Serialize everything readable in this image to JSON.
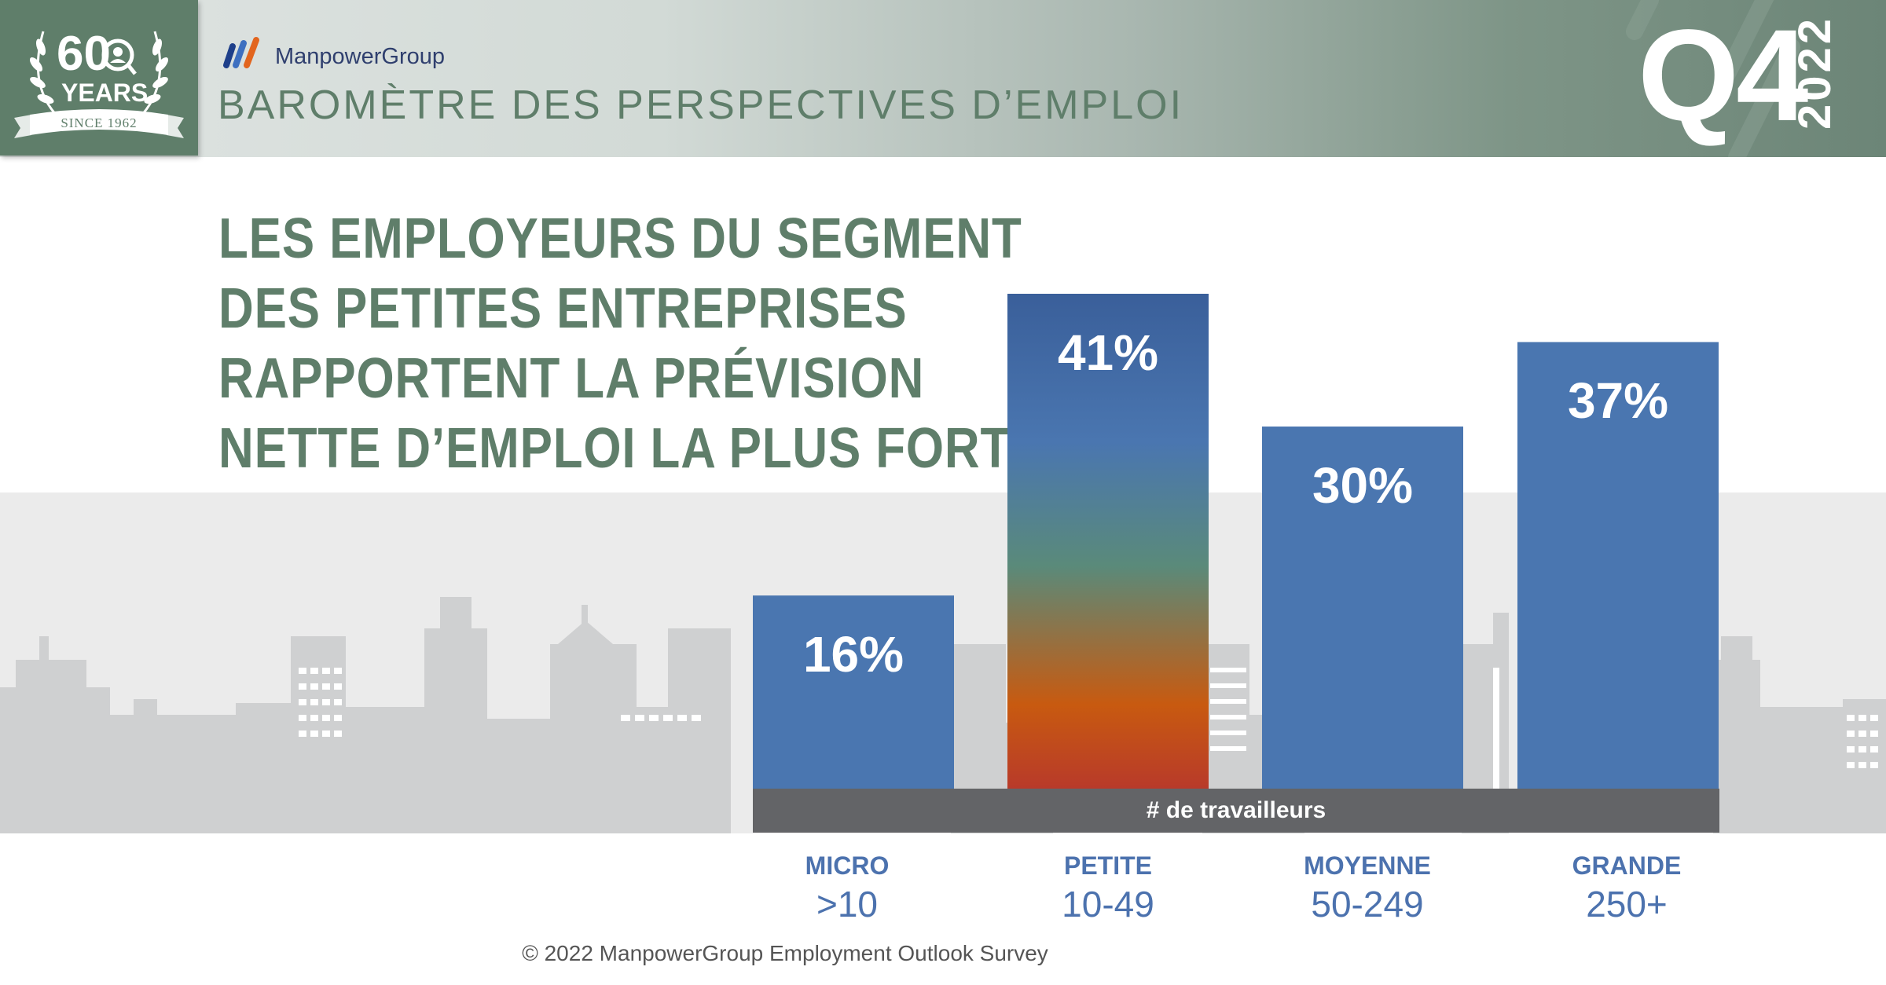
{
  "header": {
    "brand": "ManpowerGroup",
    "title": "BAROMÈTRE DES PERSPECTIVES D’EMPLOI",
    "quarter": "Q4",
    "year": "2022",
    "badge": {
      "number": "60",
      "years": "YEARS",
      "since": "SINCE 1962"
    }
  },
  "headline": [
    "LES EMPLOYEURS DU SEGMENT",
    "DES PETITES ENTREPRISES",
    "RAPPORTENT LA PRÉVISION",
    "NETTE D’EMPLOI LA PLUS FORTE"
  ],
  "chart_data": {
    "type": "bar",
    "categories": [
      "MICRO",
      "PETITE",
      "MOYENNE",
      "GRANDE"
    ],
    "category_ranges": [
      ">10",
      "10-49",
      "50-249",
      "250+"
    ],
    "values": [
      16,
      41,
      30,
      37
    ],
    "value_labels": [
      "16%",
      "41%",
      "30%",
      "37%"
    ],
    "xlabel": "# de travailleurs",
    "ylim": [
      0,
      41
    ],
    "highlight": "PETITE",
    "colors": {
      "bar": "#4a76b0",
      "highlight_top": "#3a5f9a",
      "highlight_mid": "#5a8a7a",
      "highlight_low": "#c85a10",
      "highlight_bottom": "#b83a2a"
    }
  },
  "footer": {
    "copyright": "© 2022 ManpowerGroup Employment Outlook Survey"
  },
  "colors": {
    "green": "#5f7e6a",
    "blue": "#4c72ae",
    "axis_bar": "#636467"
  }
}
